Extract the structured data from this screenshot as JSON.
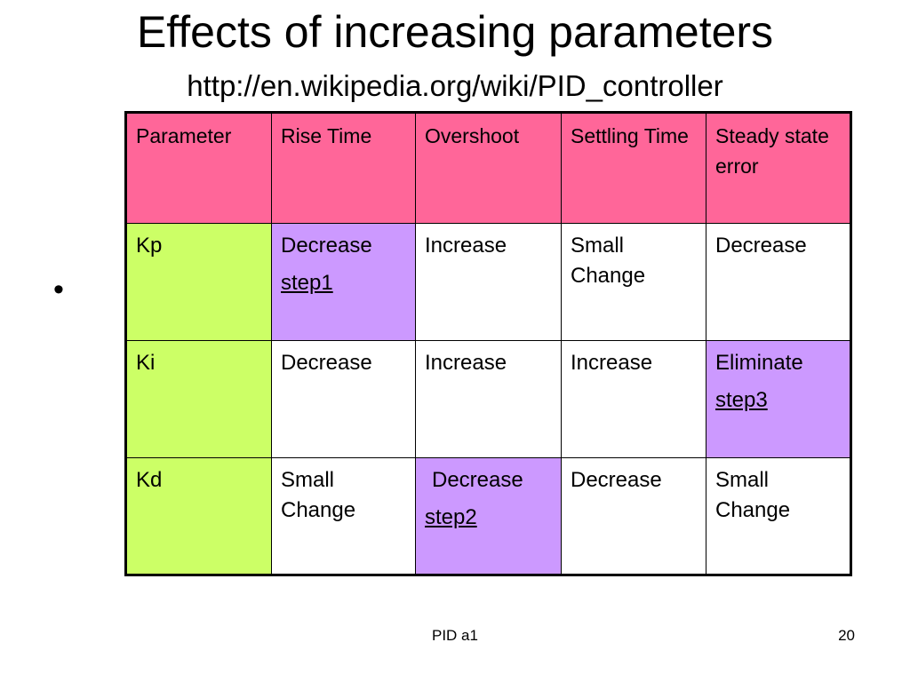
{
  "slide": {
    "title": "Effects of increasing parameters",
    "subtitle": "http://en.wikipedia.org/wiki/PID_controller",
    "bullet": "•",
    "footer_center": "PID a1",
    "page_number": "20"
  },
  "table": {
    "headers": [
      "Parameter",
      "Rise Time",
      "Overshoot",
      "Settling Time",
      "Steady state error"
    ],
    "rows": [
      {
        "param": "Kp",
        "rise_time": "Decrease",
        "rise_time_step": "step1",
        "overshoot": "Increase",
        "settling_time": "Small Change",
        "steady_state_error": "Decrease"
      },
      {
        "param": "Ki",
        "rise_time": "Decrease",
        "overshoot": "Increase",
        "settling_time": "Increase",
        "steady_state_error": "Eliminate",
        "steady_state_error_step": "step3"
      },
      {
        "param": "Kd",
        "rise_time": "Small Change",
        "overshoot": "Decrease",
        "overshoot_step": "step2",
        "settling_time": "Decrease",
        "steady_state_error": "Small Change"
      }
    ]
  },
  "colors": {
    "header_bg": "#ff6699",
    "parameter_bg": "#ccff66",
    "step_bg": "#cc99ff"
  }
}
